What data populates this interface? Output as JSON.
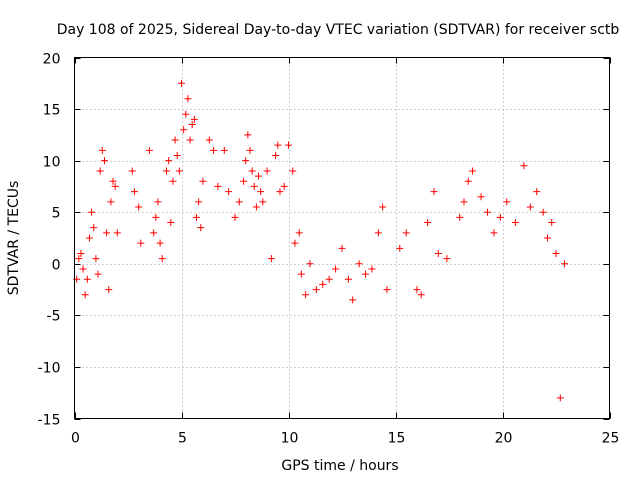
{
  "chart_data": {
    "type": "scatter",
    "title": "Day 108 of 2025, Sidereal Day-to-day VTEC variation (SDTVAR) for receiver sctb",
    "xlabel": "GPS time / hours",
    "ylabel": "SDTVAR / TECUs",
    "xlim": [
      0,
      25
    ],
    "ylim": [
      -15,
      20
    ],
    "xticks": [
      0,
      5,
      10,
      15,
      20,
      25
    ],
    "yticks": [
      -15,
      -10,
      -5,
      0,
      5,
      10,
      15,
      20
    ],
    "grid": true,
    "legend": "none",
    "marker": "plus",
    "color": "#ff0000",
    "series": [
      {
        "name": "SDTVAR",
        "x": [
          0.1,
          0.2,
          0.3,
          0.4,
          0.5,
          0.6,
          0.7,
          0.8,
          0.9,
          1.0,
          1.1,
          1.2,
          1.3,
          1.4,
          1.5,
          1.6,
          1.7,
          1.8,
          1.9,
          2.0,
          2.7,
          2.8,
          3.0,
          3.1,
          3.5,
          3.7,
          3.8,
          3.9,
          4.0,
          4.1,
          4.3,
          4.4,
          4.5,
          4.6,
          4.7,
          4.8,
          4.9,
          5.0,
          5.1,
          5.2,
          5.3,
          5.4,
          5.5,
          5.6,
          5.7,
          5.8,
          5.9,
          6.0,
          6.3,
          6.5,
          6.7,
          7.0,
          7.2,
          7.5,
          7.7,
          7.9,
          8.0,
          8.1,
          8.2,
          8.3,
          8.4,
          8.5,
          8.6,
          8.7,
          8.8,
          9.0,
          9.2,
          9.4,
          9.5,
          9.6,
          9.8,
          10.0,
          10.2,
          10.3,
          10.5,
          10.6,
          10.8,
          11.0,
          11.3,
          11.6,
          11.9,
          12.2,
          12.5,
          12.8,
          13.0,
          13.3,
          13.6,
          13.9,
          14.2,
          14.4,
          14.6,
          15.2,
          15.5,
          16.0,
          16.2,
          16.5,
          16.8,
          17.0,
          17.4,
          18.0,
          18.2,
          18.4,
          18.6,
          19.0,
          19.3,
          19.6,
          19.9,
          20.2,
          20.6,
          21.0,
          21.3,
          21.6,
          21.9,
          22.1,
          22.3,
          22.5,
          22.7,
          22.9
        ],
        "y": [
          -1.5,
          0.5,
          1.0,
          -0.5,
          -3.0,
          -1.5,
          2.5,
          5.0,
          3.5,
          0.5,
          -1.0,
          9.0,
          11.0,
          10.0,
          3.0,
          -2.5,
          6.0,
          8.0,
          7.5,
          3.0,
          9.0,
          7.0,
          5.5,
          2.0,
          11.0,
          3.0,
          4.5,
          6.0,
          2.0,
          0.5,
          9.0,
          10.0,
          4.0,
          8.0,
          12.0,
          10.5,
          9.0,
          17.5,
          13.0,
          14.5,
          16.0,
          12.0,
          13.5,
          14.0,
          4.5,
          6.0,
          3.5,
          8.0,
          12.0,
          11.0,
          7.5,
          11.0,
          7.0,
          4.5,
          6.0,
          8.0,
          10.0,
          12.5,
          11.0,
          9.0,
          7.5,
          5.5,
          8.5,
          7.0,
          6.0,
          9.0,
          0.5,
          10.5,
          11.5,
          7.0,
          7.5,
          11.5,
          9.0,
          2.0,
          3.0,
          -1.0,
          -3.0,
          0.0,
          -2.5,
          -2.0,
          -1.5,
          -0.5,
          1.5,
          -1.5,
          -3.5,
          0.0,
          -1.0,
          -0.5,
          3.0,
          5.5,
          -2.5,
          1.5,
          3.0,
          -2.5,
          -3.0,
          4.0,
          7.0,
          1.0,
          0.5,
          4.5,
          6.0,
          8.0,
          9.0,
          6.5,
          5.0,
          3.0,
          4.5,
          6.0,
          4.0,
          9.5,
          5.5,
          7.0,
          5.0,
          2.5,
          4.0,
          1.0,
          -13.0,
          0.0
        ]
      }
    ]
  }
}
